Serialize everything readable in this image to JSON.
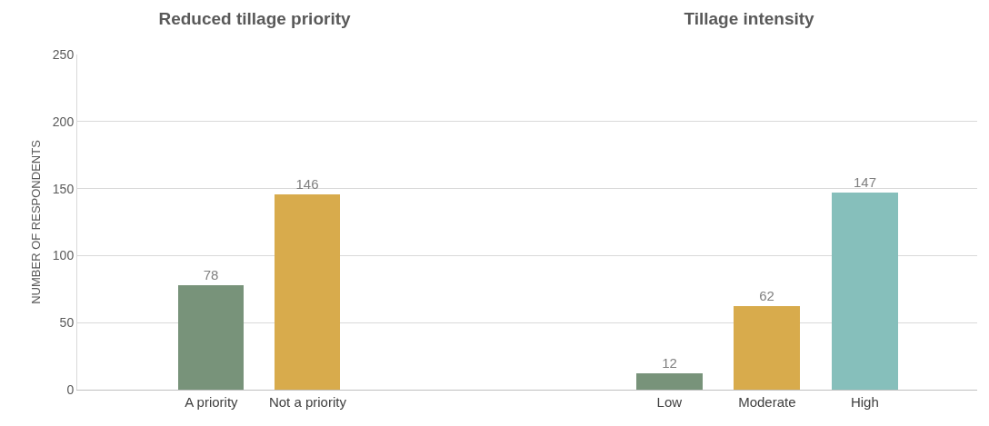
{
  "chart_data": [
    {
      "type": "bar",
      "title": "Reduced tillage priority",
      "ylabel": "NUMBER OF RESPONDENTS",
      "categories": [
        "A priority",
        "Not a priority"
      ],
      "values": [
        78,
        146
      ],
      "colors": [
        "#78937a",
        "#d8ab4c"
      ],
      "ylim": [
        0,
        250
      ],
      "yticks": [
        0,
        50,
        100,
        150,
        200,
        250
      ],
      "grid": "y",
      "data_labels": true
    },
    {
      "type": "bar",
      "title": "Tillage intensity",
      "categories": [
        "Low",
        "Moderate",
        "High"
      ],
      "values": [
        12,
        62,
        147
      ],
      "colors": [
        "#78937a",
        "#d8ab4c",
        "#86bfbb"
      ],
      "ylim": [
        0,
        250
      ],
      "yticks": [
        0,
        50,
        100,
        150,
        200,
        250
      ],
      "grid": "y",
      "data_labels": true,
      "tick_labels": "x"
    }
  ]
}
